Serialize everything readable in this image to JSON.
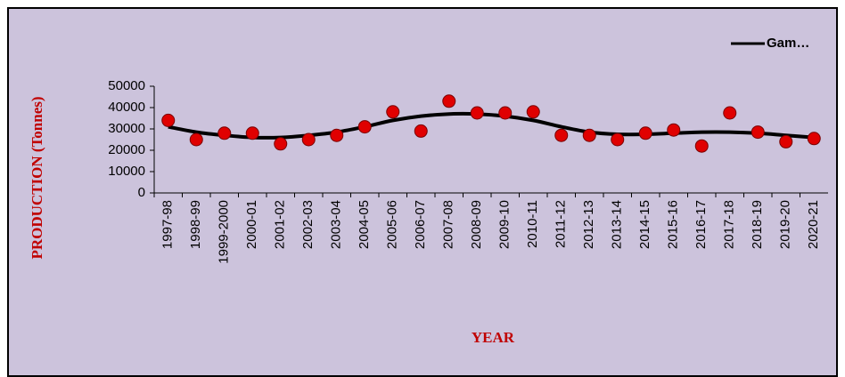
{
  "chart_data": {
    "type": "line",
    "y_label": "PRODUCTION (Tonnes)",
    "x_label": "YEAR",
    "categories": [
      "1997-98",
      "1998-99",
      "1999-2000",
      "2000-01",
      "2001-02",
      "2002-03",
      "2003-04",
      "2004-05",
      "2005-06",
      "2006-07",
      "2007-08",
      "2008-09",
      "2009-10",
      "2010-11",
      "2011-12",
      "2012-13",
      "2013-14",
      "2014-15",
      "2015-16",
      "2016-17",
      "2017-18",
      "2018-19",
      "2019-20",
      "2020-21"
    ],
    "series": [
      {
        "style": "markers",
        "color": "#e00000",
        "values": [
          34000,
          25000,
          28000,
          28000,
          23000,
          25000,
          27000,
          31000,
          38000,
          29000,
          43000,
          37500,
          37500,
          38000,
          27000,
          27000,
          25000,
          28000,
          29500,
          22000,
          37500,
          28500,
          24000,
          25500
        ]
      },
      {
        "name": "Gam…",
        "style": "smooth-line",
        "color": "#000000",
        "values": [
          31000,
          28500,
          27000,
          26000,
          26000,
          27000,
          28500,
          31000,
          34000,
          36000,
          37000,
          37000,
          36000,
          34000,
          31000,
          28500,
          27500,
          27500,
          28000,
          28500,
          28500,
          28000,
          27000,
          26000
        ]
      }
    ],
    "ylim": [
      0,
      50000
    ],
    "yticks": [
      0,
      10000,
      20000,
      30000,
      40000,
      50000
    ],
    "legend": "top-right"
  }
}
